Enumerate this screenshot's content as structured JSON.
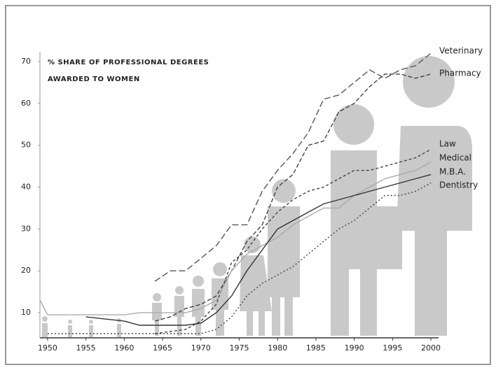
{
  "chart_data": {
    "type": "line",
    "title": [
      "% SHARE OF PROFESSIONAL DEGREES",
      "AWARDED TO WOMEN"
    ],
    "x": [
      1949,
      1950,
      1955,
      1960,
      1962,
      1964,
      1966,
      1968,
      1970,
      1972,
      1974,
      1976,
      1978,
      1980,
      1982,
      1984,
      1986,
      1988,
      1990,
      1992,
      1994,
      1996,
      1998,
      2000
    ],
    "series": [
      {
        "name": "Veterinary",
        "color": "#555555",
        "dash": "9 4",
        "values": [
          null,
          null,
          null,
          null,
          null,
          17.5,
          20,
          20,
          23,
          26,
          31,
          31,
          39,
          44,
          48,
          53,
          61,
          62,
          65,
          68,
          66,
          68,
          69,
          72
        ]
      },
      {
        "name": "Pharmacy",
        "color": "#444444",
        "dash": "6 3",
        "values": [
          null,
          null,
          null,
          null,
          null,
          8,
          9,
          11,
          12,
          14,
          20,
          27,
          31,
          40,
          43,
          50,
          51,
          58,
          60,
          64,
          67,
          67,
          66,
          67
        ]
      },
      {
        "name": "Law",
        "color": "#444444",
        "dash": "4 3",
        "values": [
          null,
          null,
          null,
          null,
          null,
          5,
          5.5,
          6,
          8,
          12,
          22,
          25,
          30,
          34,
          37,
          39,
          40,
          42,
          44,
          44,
          45,
          46,
          47,
          49
        ]
      },
      {
        "name": "Medical",
        "color": "#aaaaaa",
        "dash": "none",
        "values": [
          13,
          9.5,
          9.5,
          9.5,
          10,
          10,
          10,
          10,
          11,
          13,
          20,
          24,
          26,
          28,
          31,
          33,
          35,
          35,
          38,
          40,
          42,
          43,
          44,
          46
        ]
      },
      {
        "name": "M.B.A.",
        "color": "#333333",
        "dash": "none",
        "values": [
          null,
          null,
          9,
          8,
          7,
          7,
          7,
          7,
          7.5,
          10,
          14,
          20,
          25,
          30,
          32,
          34,
          36,
          37,
          38,
          39,
          40,
          41,
          42,
          43
        ]
      },
      {
        "name": "Dentistry",
        "color": "#444444",
        "dash": "2 3",
        "values": [
          null,
          5,
          5,
          5,
          5,
          5,
          5,
          5,
          5,
          6,
          9,
          14,
          17,
          19,
          21,
          24,
          27,
          30,
          32,
          35,
          38,
          38,
          39,
          41
        ]
      }
    ],
    "xlim": [
      1949,
      2001
    ],
    "ylim": [
      4,
      74
    ],
    "xticks": [
      1950,
      1955,
      1960,
      1965,
      1970,
      1975,
      1980,
      1985,
      1990,
      1995,
      2000
    ],
    "yticks": [
      10,
      20,
      30,
      40,
      50,
      60,
      70
    ],
    "grid": false
  }
}
